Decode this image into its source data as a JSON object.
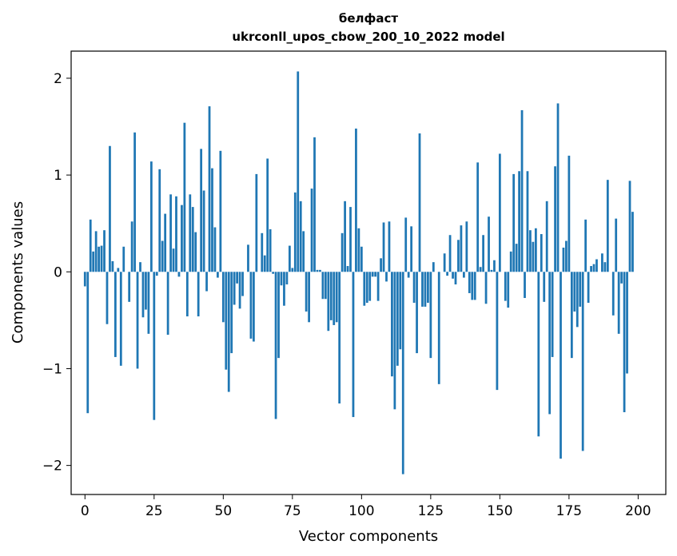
{
  "chart_data": {
    "type": "bar",
    "title": "белфаст",
    "subtitle": "ukrconll_upos_cbow_200_10_2022 model",
    "xlabel": "Vector components",
    "ylabel": "Components values",
    "xlim": [
      -5,
      210
    ],
    "ylim": [
      -2.3,
      2.28
    ],
    "xticks": [
      0,
      25,
      50,
      75,
      100,
      125,
      150,
      175,
      200
    ],
    "xtick_labels": [
      "0",
      "25",
      "50",
      "75",
      "100",
      "125",
      "150",
      "175",
      "200"
    ],
    "yticks": [
      -2,
      -1,
      0,
      1,
      2
    ],
    "ytick_labels": [
      "−2",
      "−1",
      "0",
      "1",
      "2"
    ],
    "grid": false,
    "bar_color": "#1f77b4",
    "values": [
      -0.15,
      -1.46,
      0.54,
      0.21,
      0.42,
      0.26,
      0.27,
      0.43,
      -0.54,
      1.3,
      0.11,
      -0.88,
      0.04,
      -0.97,
      0.26,
      0.0,
      -0.31,
      0.52,
      1.44,
      -1.0,
      0.1,
      -0.47,
      -0.39,
      -0.64,
      1.14,
      -1.53,
      -0.04,
      1.06,
      0.32,
      0.6,
      -0.65,
      0.8,
      0.24,
      0.78,
      -0.05,
      0.69,
      1.54,
      -0.46,
      0.8,
      0.67,
      0.41,
      -0.46,
      1.27,
      0.84,
      -0.2,
      1.71,
      1.07,
      0.46,
      -0.06,
      1.25,
      -0.52,
      -1.01,
      -1.24,
      -0.84,
      -0.34,
      -0.12,
      -0.38,
      -0.25,
      0.0,
      0.28,
      -0.69,
      -0.72,
      1.01,
      0.0,
      0.4,
      0.17,
      1.17,
      0.44,
      -0.02,
      -1.52,
      -0.89,
      -0.14,
      -0.35,
      -0.13,
      0.27,
      0.04,
      0.82,
      2.07,
      0.73,
      0.42,
      -0.41,
      -0.52,
      0.86,
      1.39,
      0.02,
      0.02,
      -0.28,
      -0.28,
      -0.61,
      -0.5,
      -0.55,
      -0.52,
      -1.36,
      0.4,
      0.73,
      0.06,
      0.67,
      -1.5,
      1.48,
      0.45,
      0.26,
      -0.35,
      -0.32,
      -0.3,
      -0.05,
      -0.05,
      -0.3,
      0.14,
      0.51,
      -0.1,
      0.52,
      -1.08,
      -1.42,
      -0.97,
      -0.8,
      -2.09,
      0.56,
      -0.06,
      0.47,
      -0.32,
      -0.84,
      1.43,
      -0.36,
      -0.36,
      -0.32,
      -0.89,
      0.1,
      0.0,
      -1.16,
      0.0,
      0.19,
      -0.04,
      0.38,
      -0.07,
      -0.13,
      0.33,
      0.48,
      -0.06,
      0.52,
      -0.22,
      -0.29,
      -0.29,
      1.13,
      0.05,
      0.38,
      -0.33,
      0.57,
      0.02,
      0.12,
      -1.22,
      1.22,
      0.0,
      -0.3,
      -0.37,
      0.21,
      1.01,
      0.29,
      1.04,
      1.67,
      -0.27,
      1.04,
      0.43,
      0.31,
      0.45,
      -1.7,
      0.39,
      -0.31,
      0.73,
      -1.47,
      -0.88,
      1.09,
      1.74,
      -1.93,
      0.25,
      0.32,
      1.2,
      -0.89,
      -0.41,
      -0.57,
      -0.36,
      -1.85,
      0.54,
      -0.32,
      0.06,
      0.08,
      0.13,
      0.0,
      0.19,
      0.1,
      0.95,
      0.0,
      -0.45,
      0.55,
      -0.64,
      -0.12,
      -1.45,
      -1.05,
      0.94,
      0.62
    ]
  }
}
